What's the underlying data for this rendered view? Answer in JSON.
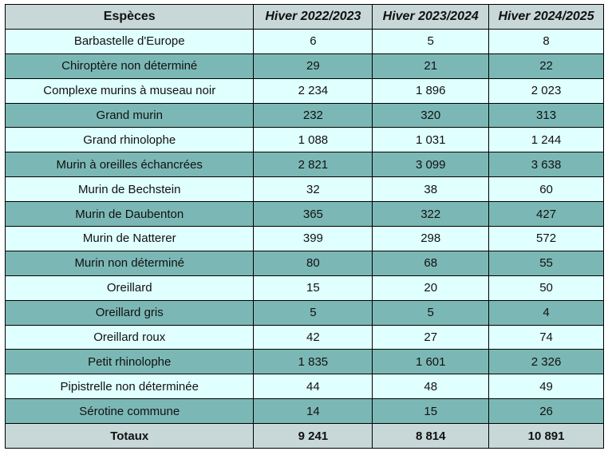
{
  "header": [
    "Espèces",
    "Hiver 2022/2023",
    "Hiver 2023/2024",
    "Hiver 2024/2025"
  ],
  "rows": [
    [
      "Barbastelle d'Europe",
      "6",
      "5",
      "8"
    ],
    [
      "Chiroptère non déterminé",
      "29",
      "21",
      "22"
    ],
    [
      "Complexe murins à museau noir",
      "2 234",
      "1 896",
      "2 023"
    ],
    [
      "Grand murin",
      "232",
      "320",
      "313"
    ],
    [
      "Grand rhinolophe",
      "1 088",
      "1 031",
      "1 244"
    ],
    [
      "Murin à oreilles échancrées",
      "2 821",
      "3 099",
      "3 638"
    ],
    [
      "Murin de Bechstein",
      "32",
      "38",
      "60"
    ],
    [
      "Murin de Daubenton",
      "365",
      "322",
      "427"
    ],
    [
      "Murin de Natterer",
      "399",
      "298",
      "572"
    ],
    [
      "Murin non déterminé",
      "80",
      "68",
      "55"
    ],
    [
      "Oreillard",
      "15",
      "20",
      "50"
    ],
    [
      "Oreillard gris",
      "5",
      "5",
      "4"
    ],
    [
      "Oreillard roux",
      "42",
      "27",
      "74"
    ],
    [
      "Petit rhinolophe",
      "1 835",
      "1 601",
      "2 326"
    ],
    [
      "Pipistrelle non déterminée",
      "44",
      "48",
      "49"
    ],
    [
      "Sérotine commune",
      "14",
      "15",
      "26"
    ]
  ],
  "totals": [
    "Totaux",
    "9 241",
    "8 814",
    "10 891"
  ],
  "colors": {
    "header": "#c8d8d8",
    "row_light": "#e0ffff",
    "row_dark": "#7bb8b5"
  }
}
